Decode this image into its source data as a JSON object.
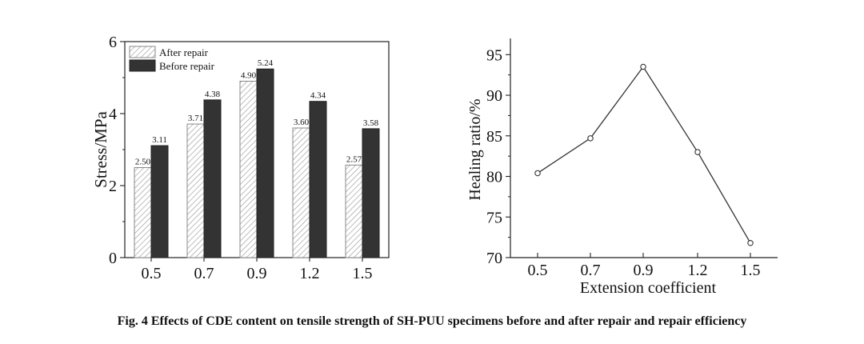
{
  "caption": "Fig. 4  Effects of CDE content on tensile strength of SH-PUU specimens before and after repair and repair efficiency",
  "chart_data": [
    {
      "type": "bar",
      "title": "",
      "xlabel": "",
      "ylabel": "Stress/MPa",
      "ylim": [
        0,
        6
      ],
      "yticks": [
        "0",
        "2",
        "4",
        "6"
      ],
      "categories": [
        "0.5",
        "0.7",
        "0.9",
        "1.2",
        "1.5"
      ],
      "series": [
        {
          "name": "After repair",
          "style": "hatched",
          "values": [
            2.5,
            3.71,
            4.9,
            3.6,
            2.57
          ],
          "labels": [
            "2.50",
            "3.71",
            "4.90",
            "3.60",
            "2.57"
          ]
        },
        {
          "name": "Before repair",
          "style": "solid",
          "values": [
            3.11,
            4.38,
            5.24,
            4.34,
            3.58
          ],
          "labels": [
            "3.11",
            "4.38",
            "5.24",
            "4.34",
            "3.58"
          ]
        }
      ],
      "legend": "top-left",
      "colors": {
        "solid": "#333333",
        "hatch": "#999999",
        "axis": "#222222"
      }
    },
    {
      "type": "line",
      "title": "",
      "xlabel": "Extension coefficient",
      "ylabel": "Healing ratio/%",
      "ylim": [
        70,
        97
      ],
      "yticks": [
        "70",
        "75",
        "80",
        "85",
        "90",
        "95"
      ],
      "categories": [
        "0.5",
        "0.7",
        "0.9",
        "1.2",
        "1.5"
      ],
      "series": [
        {
          "name": "Healing ratio",
          "values": [
            80.4,
            84.7,
            93.5,
            83.0,
            71.8
          ]
        }
      ],
      "colors": {
        "line": "#333333",
        "marker_fill": "#ffffff",
        "axis": "#222222"
      }
    }
  ]
}
